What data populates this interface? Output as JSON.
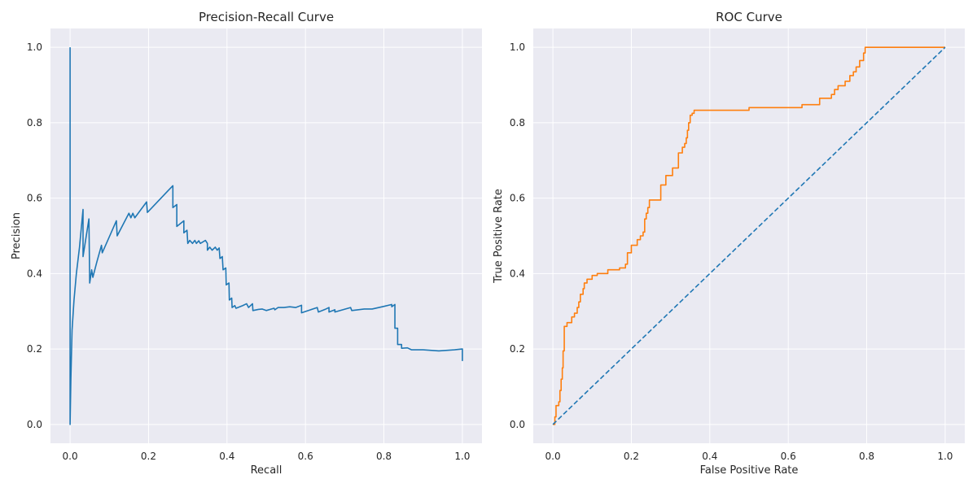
{
  "figure": {
    "background": "#ffffff"
  },
  "chart_data": [
    {
      "type": "line",
      "title": "Precision-Recall Curve",
      "xlabel": "Recall",
      "ylabel": "Precision",
      "xlim": [
        -0.05,
        1.05
      ],
      "ylim": [
        -0.05,
        1.05
      ],
      "xticks": [
        "0.0",
        "0.2",
        "0.4",
        "0.6",
        "0.8",
        "1.0"
      ],
      "yticks": [
        "0.0",
        "0.2",
        "0.4",
        "0.6",
        "0.8",
        "1.0"
      ],
      "grid": true,
      "background": "#eaeaf2",
      "series": [
        {
          "color": "#1f77b4",
          "style": "solid",
          "points": [
            [
              0.0,
              1.0
            ],
            [
              0.0,
              0.0
            ],
            [
              0.002,
              0.12
            ],
            [
              0.005,
              0.25
            ],
            [
              0.01,
              0.33
            ],
            [
              0.016,
              0.4
            ],
            [
              0.024,
              0.47
            ],
            [
              0.033,
              0.57
            ],
            [
              0.033,
              0.445
            ],
            [
              0.048,
              0.545
            ],
            [
              0.05,
              0.375
            ],
            [
              0.055,
              0.41
            ],
            [
              0.058,
              0.39
            ],
            [
              0.068,
              0.43
            ],
            [
              0.08,
              0.475
            ],
            [
              0.082,
              0.455
            ],
            [
              0.118,
              0.54
            ],
            [
              0.12,
              0.5
            ],
            [
              0.15,
              0.56
            ],
            [
              0.155,
              0.548
            ],
            [
              0.16,
              0.56
            ],
            [
              0.165,
              0.548
            ],
            [
              0.195,
              0.59
            ],
            [
              0.197,
              0.562
            ],
            [
              0.25,
              0.62
            ],
            [
              0.262,
              0.633
            ],
            [
              0.262,
              0.575
            ],
            [
              0.272,
              0.583
            ],
            [
              0.272,
              0.525
            ],
            [
              0.29,
              0.54
            ],
            [
              0.29,
              0.508
            ],
            [
              0.298,
              0.515
            ],
            [
              0.3,
              0.48
            ],
            [
              0.305,
              0.488
            ],
            [
              0.312,
              0.48
            ],
            [
              0.318,
              0.488
            ],
            [
              0.322,
              0.48
            ],
            [
              0.328,
              0.487
            ],
            [
              0.332,
              0.48
            ],
            [
              0.345,
              0.488
            ],
            [
              0.35,
              0.48
            ],
            [
              0.35,
              0.462
            ],
            [
              0.356,
              0.47
            ],
            [
              0.362,
              0.462
            ],
            [
              0.37,
              0.47
            ],
            [
              0.375,
              0.462
            ],
            [
              0.38,
              0.468
            ],
            [
              0.382,
              0.44
            ],
            [
              0.388,
              0.445
            ],
            [
              0.39,
              0.41
            ],
            [
              0.397,
              0.415
            ],
            [
              0.398,
              0.37
            ],
            [
              0.405,
              0.375
            ],
            [
              0.406,
              0.33
            ],
            [
              0.412,
              0.335
            ],
            [
              0.413,
              0.31
            ],
            [
              0.42,
              0.315
            ],
            [
              0.423,
              0.308
            ],
            [
              0.44,
              0.315
            ],
            [
              0.45,
              0.32
            ],
            [
              0.455,
              0.31
            ],
            [
              0.465,
              0.32
            ],
            [
              0.466,
              0.302
            ],
            [
              0.48,
              0.305
            ],
            [
              0.49,
              0.306
            ],
            [
              0.5,
              0.302
            ],
            [
              0.52,
              0.308
            ],
            [
              0.522,
              0.304
            ],
            [
              0.53,
              0.31
            ],
            [
              0.545,
              0.31
            ],
            [
              0.56,
              0.312
            ],
            [
              0.575,
              0.31
            ],
            [
              0.59,
              0.316
            ],
            [
              0.59,
              0.296
            ],
            [
              0.63,
              0.31
            ],
            [
              0.633,
              0.298
            ],
            [
              0.65,
              0.305
            ],
            [
              0.66,
              0.31
            ],
            [
              0.66,
              0.298
            ],
            [
              0.675,
              0.304
            ],
            [
              0.675,
              0.298
            ],
            [
              0.715,
              0.31
            ],
            [
              0.718,
              0.302
            ],
            [
              0.75,
              0.306
            ],
            [
              0.77,
              0.306
            ],
            [
              0.8,
              0.313
            ],
            [
              0.82,
              0.318
            ],
            [
              0.82,
              0.312
            ],
            [
              0.828,
              0.318
            ],
            [
              0.828,
              0.255
            ],
            [
              0.835,
              0.255
            ],
            [
              0.835,
              0.212
            ],
            [
              0.845,
              0.212
            ],
            [
              0.845,
              0.202
            ],
            [
              0.86,
              0.203
            ],
            [
              0.87,
              0.198
            ],
            [
              0.9,
              0.198
            ],
            [
              0.94,
              0.195
            ],
            [
              0.98,
              0.198
            ],
            [
              1.0,
              0.2
            ],
            [
              1.0,
              0.168
            ]
          ]
        }
      ]
    },
    {
      "type": "line",
      "title": "ROC Curve",
      "xlabel": "False Positive Rate",
      "ylabel": "True Positive Rate",
      "xlim": [
        -0.05,
        1.05
      ],
      "ylim": [
        -0.05,
        1.05
      ],
      "xticks": [
        "0.0",
        "0.2",
        "0.4",
        "0.6",
        "0.8",
        "1.0"
      ],
      "yticks": [
        "0.0",
        "0.2",
        "0.4",
        "0.6",
        "0.8",
        "1.0"
      ],
      "grid": true,
      "background": "#eaeaf2",
      "series": [
        {
          "color": "#ff7f0e",
          "style": "solid",
          "points": [
            [
              0.0,
              0.0
            ],
            [
              0.005,
              0.0
            ],
            [
              0.005,
              0.02
            ],
            [
              0.008,
              0.02
            ],
            [
              0.008,
              0.05
            ],
            [
              0.015,
              0.05
            ],
            [
              0.015,
              0.06
            ],
            [
              0.018,
              0.06
            ],
            [
              0.018,
              0.09
            ],
            [
              0.021,
              0.09
            ],
            [
              0.021,
              0.12
            ],
            [
              0.024,
              0.12
            ],
            [
              0.024,
              0.15
            ],
            [
              0.026,
              0.15
            ],
            [
              0.026,
              0.195
            ],
            [
              0.029,
              0.195
            ],
            [
              0.029,
              0.26
            ],
            [
              0.036,
              0.26
            ],
            [
              0.036,
              0.27
            ],
            [
              0.048,
              0.27
            ],
            [
              0.048,
              0.285
            ],
            [
              0.055,
              0.285
            ],
            [
              0.055,
              0.295
            ],
            [
              0.062,
              0.295
            ],
            [
              0.062,
              0.31
            ],
            [
              0.066,
              0.31
            ],
            [
              0.066,
              0.325
            ],
            [
              0.07,
              0.325
            ],
            [
              0.07,
              0.345
            ],
            [
              0.077,
              0.345
            ],
            [
              0.077,
              0.36
            ],
            [
              0.08,
              0.36
            ],
            [
              0.08,
              0.375
            ],
            [
              0.087,
              0.375
            ],
            [
              0.087,
              0.385
            ],
            [
              0.1,
              0.385
            ],
            [
              0.1,
              0.395
            ],
            [
              0.113,
              0.395
            ],
            [
              0.113,
              0.4
            ],
            [
              0.14,
              0.4
            ],
            [
              0.14,
              0.41
            ],
            [
              0.17,
              0.41
            ],
            [
              0.17,
              0.415
            ],
            [
              0.185,
              0.415
            ],
            [
              0.185,
              0.425
            ],
            [
              0.19,
              0.425
            ],
            [
              0.19,
              0.455
            ],
            [
              0.2,
              0.455
            ],
            [
              0.2,
              0.475
            ],
            [
              0.215,
              0.475
            ],
            [
              0.215,
              0.49
            ],
            [
              0.223,
              0.49
            ],
            [
              0.223,
              0.5
            ],
            [
              0.23,
              0.5
            ],
            [
              0.23,
              0.51
            ],
            [
              0.234,
              0.51
            ],
            [
              0.234,
              0.545
            ],
            [
              0.238,
              0.545
            ],
            [
              0.238,
              0.56
            ],
            [
              0.242,
              0.56
            ],
            [
              0.242,
              0.575
            ],
            [
              0.246,
              0.575
            ],
            [
              0.246,
              0.595
            ],
            [
              0.275,
              0.595
            ],
            [
              0.275,
              0.635
            ],
            [
              0.288,
              0.635
            ],
            [
              0.288,
              0.66
            ],
            [
              0.305,
              0.66
            ],
            [
              0.305,
              0.68
            ],
            [
              0.32,
              0.68
            ],
            [
              0.32,
              0.72
            ],
            [
              0.33,
              0.72
            ],
            [
              0.33,
              0.735
            ],
            [
              0.336,
              0.735
            ],
            [
              0.336,
              0.745
            ],
            [
              0.34,
              0.745
            ],
            [
              0.34,
              0.76
            ],
            [
              0.343,
              0.76
            ],
            [
              0.343,
              0.78
            ],
            [
              0.346,
              0.78
            ],
            [
              0.346,
              0.8
            ],
            [
              0.35,
              0.8
            ],
            [
              0.35,
              0.82
            ],
            [
              0.355,
              0.82
            ],
            [
              0.355,
              0.825
            ],
            [
              0.36,
              0.825
            ],
            [
              0.36,
              0.833
            ],
            [
              0.5,
              0.833
            ],
            [
              0.5,
              0.84
            ],
            [
              0.635,
              0.84
            ],
            [
              0.635,
              0.848
            ],
            [
              0.68,
              0.848
            ],
            [
              0.68,
              0.865
            ],
            [
              0.71,
              0.865
            ],
            [
              0.71,
              0.875
            ],
            [
              0.718,
              0.875
            ],
            [
              0.718,
              0.888
            ],
            [
              0.727,
              0.888
            ],
            [
              0.727,
              0.898
            ],
            [
              0.745,
              0.898
            ],
            [
              0.745,
              0.91
            ],
            [
              0.757,
              0.91
            ],
            [
              0.757,
              0.925
            ],
            [
              0.766,
              0.925
            ],
            [
              0.766,
              0.935
            ],
            [
              0.773,
              0.935
            ],
            [
              0.773,
              0.948
            ],
            [
              0.782,
              0.948
            ],
            [
              0.782,
              0.965
            ],
            [
              0.792,
              0.965
            ],
            [
              0.792,
              0.985
            ],
            [
              0.796,
              0.985
            ],
            [
              0.796,
              1.0
            ],
            [
              1.0,
              1.0
            ]
          ]
        },
        {
          "color": "#1f77b4",
          "style": "dashed",
          "points": [
            [
              0.0,
              0.0
            ],
            [
              1.0,
              1.0
            ]
          ]
        }
      ]
    }
  ]
}
